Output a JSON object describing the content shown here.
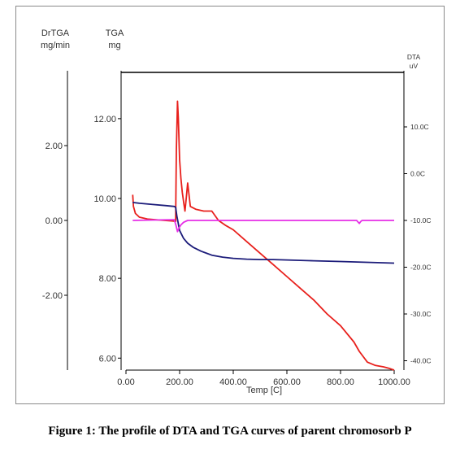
{
  "caption": "Figure 1: The profile of DTA and TGA curves of parent chromosorb P",
  "chart_data": {
    "type": "line",
    "xlabel": "Temp [C]",
    "xlim": [
      0,
      1000
    ],
    "x_ticks": [
      "0.00",
      "200.00",
      "400.00",
      "600.00",
      "800.00",
      "1000.00"
    ],
    "axes": {
      "drtga": {
        "label": "DrTGA",
        "unit": "mg/min",
        "lim": [
          -4,
          4
        ],
        "ticks": [
          "2.00",
          "0.00",
          "-2.00"
        ]
      },
      "tga": {
        "label": "TGA",
        "unit": "mg",
        "lim": [
          5.7,
          13.2
        ],
        "ticks": [
          "12.00",
          "10.00",
          "8.00",
          "6.00"
        ]
      },
      "dta": {
        "label": "DTA",
        "unit": "uV",
        "lim": [
          -42,
          22
        ],
        "ticks": [
          "10.0C",
          "0.0C",
          "-10.0C",
          "-20.0C",
          "-30.0C",
          "-40.0C"
        ]
      }
    },
    "series": [
      {
        "axis": "dta",
        "color": "#e8201c",
        "x": [
          25,
          28,
          35,
          50,
          80,
          120,
          170,
          185,
          188,
          192,
          195,
          200,
          205,
          210,
          216,
          220,
          225,
          230,
          236,
          240,
          260,
          290,
          320,
          345,
          370,
          400,
          450,
          500,
          550,
          600,
          650,
          700,
          750,
          800,
          850,
          870,
          900,
          930,
          960,
          980,
          1000
        ],
        "y": [
          -4.5,
          -7,
          -8.5,
          -9.3,
          -9.7,
          -9.9,
          -10.1,
          -10.2,
          5,
          15.5,
          12,
          3,
          -1,
          -4,
          -6.5,
          -8,
          -5,
          -2,
          -5,
          -7,
          -7.6,
          -8,
          -8,
          -10,
          -11,
          -12,
          -14.5,
          -17,
          -19.5,
          -22,
          -24.5,
          -27,
          -30,
          -32.5,
          -36,
          -38,
          -40.3,
          -41,
          -41.3,
          -41.6,
          -42
        ]
      },
      {
        "axis": "tga",
        "color": "#1c1c7a",
        "x": [
          25,
          50,
          100,
          150,
          180,
          185,
          190,
          200,
          215,
          230,
          250,
          280,
          320,
          360,
          400,
          450,
          500,
          550,
          600,
          700,
          800,
          900,
          950,
          1000
        ],
        "y": [
          9.9,
          9.88,
          9.85,
          9.82,
          9.8,
          9.78,
          9.55,
          9.2,
          9.0,
          8.88,
          8.78,
          8.68,
          8.58,
          8.53,
          8.5,
          8.48,
          8.47,
          8.47,
          8.46,
          8.44,
          8.42,
          8.4,
          8.39,
          8.38
        ]
      },
      {
        "axis": "drtga",
        "color": "#e62ee6",
        "x": [
          25,
          100,
          180,
          186,
          192,
          198,
          205,
          215,
          230,
          260,
          300,
          350,
          400,
          500,
          600,
          700,
          800,
          860,
          870,
          875,
          880,
          890,
          950,
          1000
        ],
        "y": [
          0.0,
          0.01,
          0.02,
          -0.12,
          -0.3,
          -0.2,
          -0.12,
          -0.05,
          0.0,
          0.0,
          0.0,
          0.0,
          0.0,
          0.0,
          0.0,
          0.0,
          0.0,
          0.0,
          -0.08,
          -0.03,
          0.0,
          0.0,
          0.0,
          0.0
        ]
      }
    ]
  }
}
